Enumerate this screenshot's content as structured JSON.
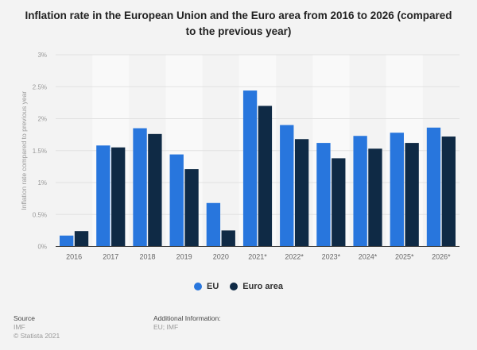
{
  "chart_data": {
    "type": "bar",
    "title": "Inflation rate in the European Union and the Euro area from 2016 to 2026 (compared to the previous year)",
    "xlabel": "",
    "ylabel": "Inflation rate compared to previous year",
    "categories": [
      "2016",
      "2017",
      "2018",
      "2019",
      "2020",
      "2021*",
      "2022*",
      "2023*",
      "2024*",
      "2025*",
      "2026*"
    ],
    "series": [
      {
        "name": "EU",
        "color": "#2876dd",
        "values": [
          0.17,
          1.58,
          1.85,
          1.44,
          0.68,
          2.44,
          1.9,
          1.62,
          1.73,
          1.78,
          1.86
        ]
      },
      {
        "name": "Euro area",
        "color": "#0f2a45",
        "values": [
          0.24,
          1.55,
          1.76,
          1.21,
          0.25,
          2.2,
          1.68,
          1.38,
          1.53,
          1.62,
          1.72
        ]
      }
    ],
    "ylim": [
      0,
      3
    ],
    "yticks": [
      0,
      0.5,
      1,
      1.5,
      2,
      2.5,
      3
    ],
    "ytick_labels": [
      "0%",
      "0.5%",
      "1%",
      "1.5%",
      "2%",
      "2.5%",
      "3%"
    ],
    "grid": true,
    "legend_position": "bottom-center"
  },
  "footer": {
    "source_label": "Source",
    "source_value": "IMF",
    "copyright": "© Statista 2021",
    "additional_label": "Additional Information:",
    "additional_value": "EU; IMF"
  }
}
